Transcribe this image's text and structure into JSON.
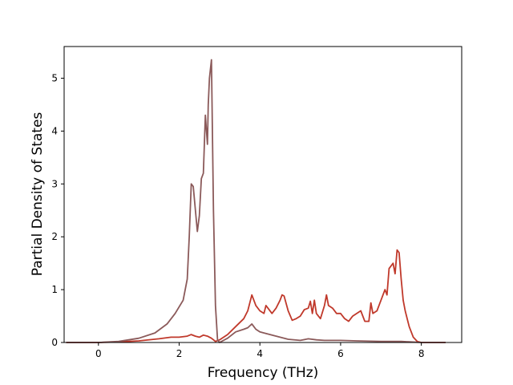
{
  "chart_data": {
    "type": "line",
    "title": "",
    "xlabel": "Frequency (THz)",
    "ylabel": "Partial Density of States",
    "xlim": [
      -0.85,
      9.0
    ],
    "ylim": [
      0,
      5.6
    ],
    "xticks": [
      0,
      2,
      4,
      6,
      8
    ],
    "yticks": [
      0,
      1,
      2,
      3,
      4,
      5
    ],
    "grid": false,
    "legend": "none",
    "series": [
      {
        "color": "#c0392b",
        "x": [
          -0.8,
          0,
          0.5,
          1.0,
          1.5,
          1.8,
          2.0,
          2.2,
          2.3,
          2.4,
          2.5,
          2.6,
          2.7,
          2.8,
          2.9,
          3.0,
          3.2,
          3.4,
          3.6,
          3.7,
          3.8,
          3.85,
          3.9,
          4.0,
          4.1,
          4.15,
          4.2,
          4.3,
          4.4,
          4.5,
          4.55,
          4.6,
          4.7,
          4.8,
          4.9,
          5.0,
          5.1,
          5.2,
          5.25,
          5.3,
          5.35,
          5.4,
          5.5,
          5.6,
          5.65,
          5.7,
          5.8,
          5.9,
          6.0,
          6.1,
          6.2,
          6.3,
          6.4,
          6.5,
          6.6,
          6.7,
          6.75,
          6.8,
          6.9,
          7.0,
          7.1,
          7.15,
          7.2,
          7.3,
          7.35,
          7.4,
          7.45,
          7.5,
          7.55,
          7.6,
          7.7,
          7.8,
          7.9,
          8.0,
          8.6
        ],
        "values": [
          0,
          0,
          0.01,
          0.03,
          0.07,
          0.1,
          0.1,
          0.12,
          0.15,
          0.12,
          0.1,
          0.14,
          0.12,
          0.08,
          0.02,
          0.05,
          0.15,
          0.3,
          0.45,
          0.6,
          0.9,
          0.8,
          0.7,
          0.6,
          0.55,
          0.7,
          0.65,
          0.55,
          0.65,
          0.8,
          0.9,
          0.88,
          0.6,
          0.42,
          0.45,
          0.5,
          0.62,
          0.65,
          0.78,
          0.55,
          0.8,
          0.55,
          0.45,
          0.7,
          0.9,
          0.7,
          0.65,
          0.55,
          0.55,
          0.45,
          0.4,
          0.5,
          0.55,
          0.6,
          0.4,
          0.4,
          0.75,
          0.55,
          0.6,
          0.8,
          1.0,
          0.9,
          1.4,
          1.5,
          1.3,
          1.75,
          1.7,
          1.2,
          0.8,
          0.6,
          0.3,
          0.1,
          0.02,
          0,
          0
        ]
      },
      {
        "color": "#8b5a5a",
        "x": [
          -0.8,
          0,
          0.5,
          1.0,
          1.4,
          1.7,
          1.9,
          2.1,
          2.2,
          2.25,
          2.3,
          2.35,
          2.45,
          2.5,
          2.55,
          2.6,
          2.65,
          2.7,
          2.72,
          2.75,
          2.8,
          2.85,
          2.9,
          2.95,
          3.0,
          3.2,
          3.4,
          3.6,
          3.7,
          3.8,
          3.85,
          3.9,
          4.0,
          4.1,
          4.3,
          4.5,
          4.7,
          5.0,
          5.2,
          5.4,
          5.6,
          6.0,
          6.4,
          7.0,
          7.5,
          8.0,
          8.6
        ],
        "values": [
          0,
          0,
          0.02,
          0.08,
          0.18,
          0.35,
          0.55,
          0.8,
          1.2,
          2.0,
          3.0,
          2.95,
          2.1,
          2.4,
          3.1,
          3.2,
          4.3,
          3.75,
          4.5,
          5.0,
          5.35,
          2.5,
          0.7,
          0.05,
          0.0,
          0.08,
          0.2,
          0.25,
          0.28,
          0.35,
          0.3,
          0.25,
          0.2,
          0.18,
          0.14,
          0.1,
          0.06,
          0.04,
          0.07,
          0.05,
          0.04,
          0.04,
          0.03,
          0.02,
          0.02,
          0,
          0
        ]
      }
    ]
  }
}
